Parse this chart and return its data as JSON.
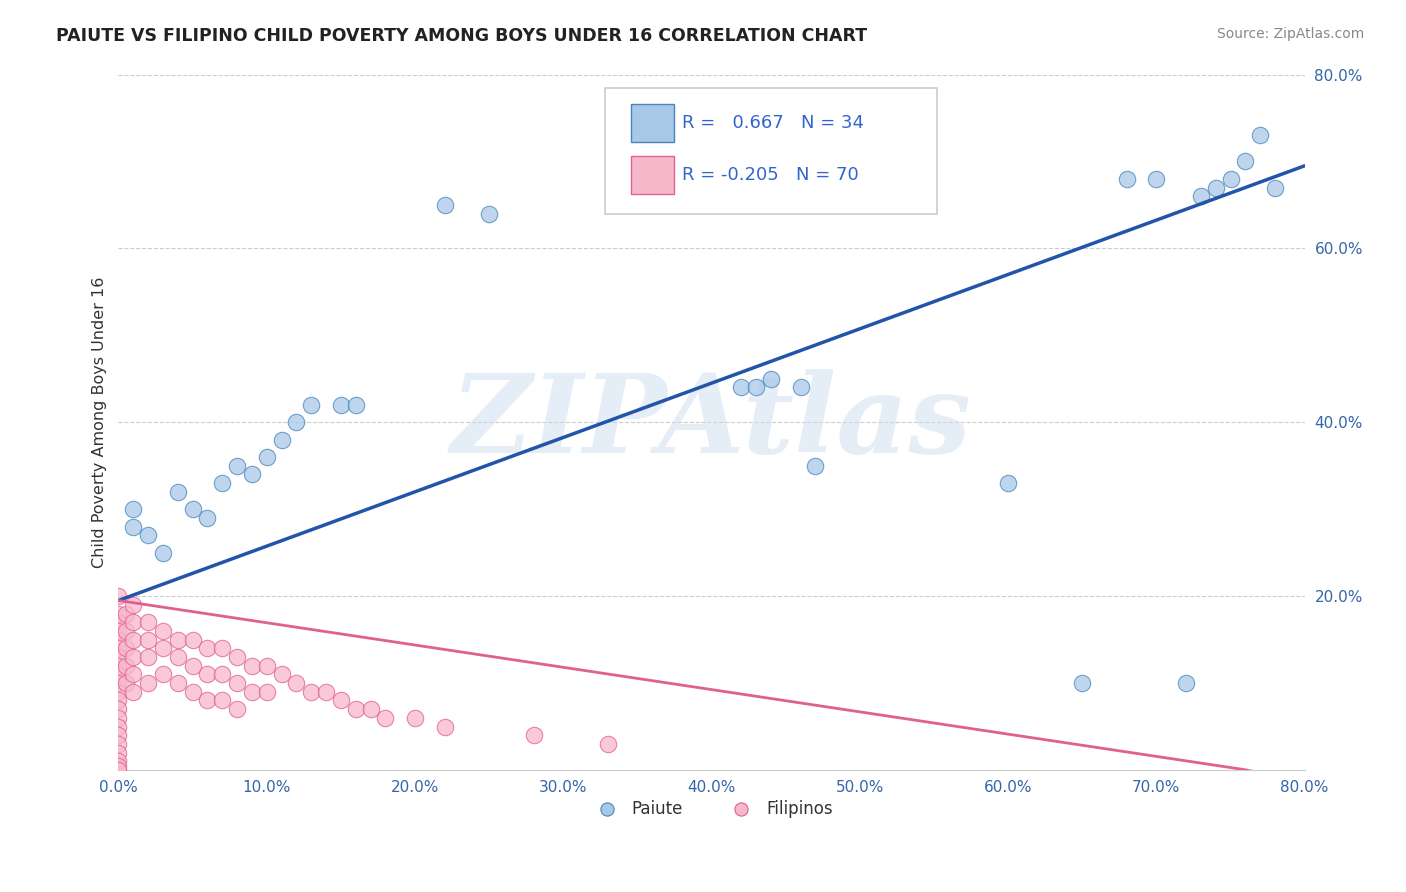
{
  "title": "PAIUTE VS FILIPINO CHILD POVERTY AMONG BOYS UNDER 16 CORRELATION CHART",
  "source": "Source: ZipAtlas.com",
  "ylabel": "Child Poverty Among Boys Under 16",
  "xlim": [
    0.0,
    0.8
  ],
  "ylim": [
    0.0,
    0.8
  ],
  "paiute_color": "#a8c8e8",
  "paiute_edge_color": "#4488bb",
  "paiute_line_color": "#2255aa",
  "filipino_color": "#f8b8cc",
  "filipino_edge_color": "#e06090",
  "filipino_line_color": "#e06090",
  "legend_r_paiute": "0.667",
  "legend_n_paiute": "34",
  "legend_r_filipino": "-0.205",
  "legend_n_filipino": "70",
  "watermark": "ZIPAtlas",
  "background_color": "#ffffff",
  "paiute_line_x0": 0.0,
  "paiute_line_y0": 0.195,
  "paiute_line_x1": 0.8,
  "paiute_line_y1": 0.695,
  "filipino_line_x0": 0.0,
  "filipino_line_y0": 0.195,
  "filipino_line_x1": 0.8,
  "filipino_line_y1": -0.01,
  "paiute_x": [
    0.01,
    0.01,
    0.02,
    0.03,
    0.04,
    0.05,
    0.06,
    0.07,
    0.08,
    0.09,
    0.1,
    0.11,
    0.12,
    0.13,
    0.15,
    0.16,
    0.22,
    0.25,
    0.42,
    0.43,
    0.44,
    0.46,
    0.47,
    0.6,
    0.65,
    0.68,
    0.7,
    0.72,
    0.73,
    0.74,
    0.75,
    0.76,
    0.77,
    0.78
  ],
  "paiute_y": [
    0.28,
    0.3,
    0.27,
    0.25,
    0.32,
    0.3,
    0.29,
    0.33,
    0.35,
    0.34,
    0.36,
    0.38,
    0.4,
    0.42,
    0.42,
    0.42,
    0.65,
    0.64,
    0.44,
    0.44,
    0.45,
    0.44,
    0.35,
    0.33,
    0.1,
    0.68,
    0.68,
    0.1,
    0.66,
    0.67,
    0.68,
    0.7,
    0.73,
    0.67
  ],
  "filipino_x": [
    0.0,
    0.0,
    0.0,
    0.0,
    0.0,
    0.0,
    0.0,
    0.0,
    0.0,
    0.0,
    0.0,
    0.0,
    0.0,
    0.0,
    0.0,
    0.0,
    0.0,
    0.0,
    0.0,
    0.0,
    0.0,
    0.005,
    0.005,
    0.005,
    0.005,
    0.005,
    0.01,
    0.01,
    0.01,
    0.01,
    0.01,
    0.01,
    0.02,
    0.02,
    0.02,
    0.02,
    0.03,
    0.03,
    0.03,
    0.04,
    0.04,
    0.04,
    0.05,
    0.05,
    0.05,
    0.06,
    0.06,
    0.06,
    0.07,
    0.07,
    0.07,
    0.08,
    0.08,
    0.08,
    0.09,
    0.09,
    0.1,
    0.1,
    0.11,
    0.12,
    0.13,
    0.14,
    0.15,
    0.16,
    0.17,
    0.18,
    0.2,
    0.22,
    0.28,
    0.33
  ],
  "filipino_y": [
    0.2,
    0.18,
    0.17,
    0.16,
    0.15,
    0.14,
    0.13,
    0.12,
    0.11,
    0.1,
    0.09,
    0.08,
    0.07,
    0.06,
    0.05,
    0.04,
    0.03,
    0.02,
    0.01,
    0.005,
    0.0,
    0.18,
    0.16,
    0.14,
    0.12,
    0.1,
    0.19,
    0.17,
    0.15,
    0.13,
    0.11,
    0.09,
    0.17,
    0.15,
    0.13,
    0.1,
    0.16,
    0.14,
    0.11,
    0.15,
    0.13,
    0.1,
    0.15,
    0.12,
    0.09,
    0.14,
    0.11,
    0.08,
    0.14,
    0.11,
    0.08,
    0.13,
    0.1,
    0.07,
    0.12,
    0.09,
    0.12,
    0.09,
    0.11,
    0.1,
    0.09,
    0.09,
    0.08,
    0.07,
    0.07,
    0.06,
    0.06,
    0.05,
    0.04,
    0.03
  ]
}
